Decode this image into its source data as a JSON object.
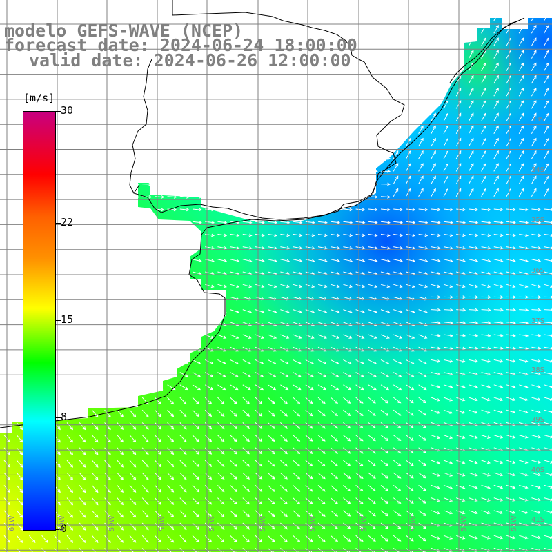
{
  "header": {
    "model_line": "modelo GEFS-WAVE (NCEP)",
    "forecast_line": "forecast date: 2024-06-24 18:00:00",
    "valid_line": "valid date: 2024-06-26 12:00:00"
  },
  "colorbar": {
    "unit": "[m/s]",
    "ticks": [
      "30",
      "22",
      "15",
      "8",
      "0"
    ],
    "tick_values": [
      30,
      22,
      15,
      8,
      0
    ]
  },
  "axes": {
    "lon_labels": [
      "61W",
      "60W",
      "59W",
      "58W",
      "57W",
      "56W",
      "55W",
      "54W",
      "53W",
      "52W",
      "51W"
    ],
    "lat_labels": [
      "33S",
      "34S",
      "35S",
      "36S",
      "37S",
      "38S",
      "39S",
      "40S",
      "41S"
    ]
  },
  "colors": {
    "land": "#ffffff",
    "grid": "#808080",
    "coast": "#000000",
    "arrows": "#ffffff"
  }
}
